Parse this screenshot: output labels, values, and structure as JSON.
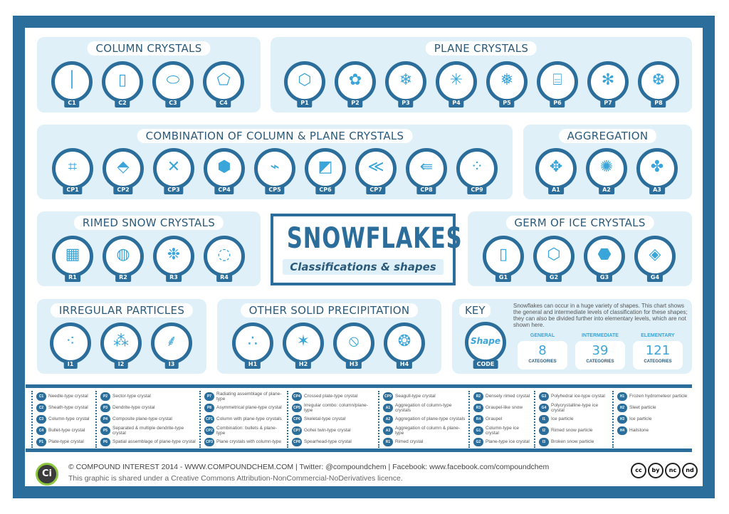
{
  "title": {
    "main": "SNOWFLAKES",
    "subtitle": "Classifications & shapes"
  },
  "colors": {
    "frame": "#2b6e9b",
    "panel": "#dff0f9",
    "icon": "#3aa5d8"
  },
  "groups": [
    {
      "id": "column",
      "title": "COLUMN CRYSTALS",
      "items": [
        {
          "code": "C1",
          "icon": "│"
        },
        {
          "code": "C2",
          "icon": "▯"
        },
        {
          "code": "C3",
          "icon": "⬭"
        },
        {
          "code": "C4",
          "icon": "⬠"
        }
      ]
    },
    {
      "id": "plane",
      "title": "PLANE CRYSTALS",
      "items": [
        {
          "code": "P1",
          "icon": "⬡"
        },
        {
          "code": "P2",
          "icon": "✿"
        },
        {
          "code": "P3",
          "icon": "❄"
        },
        {
          "code": "P4",
          "icon": "✳"
        },
        {
          "code": "P5",
          "icon": "❅"
        },
        {
          "code": "P6",
          "icon": "⌸"
        },
        {
          "code": "P7",
          "icon": "✻"
        },
        {
          "code": "P8",
          "icon": "❆"
        }
      ]
    },
    {
      "id": "combination",
      "title": "COMBINATION OF COLUMN & PLANE  CRYSTALS",
      "items": [
        {
          "code": "CP1",
          "icon": "⌗"
        },
        {
          "code": "CP2",
          "icon": "⬘"
        },
        {
          "code": "CP3",
          "icon": "✕"
        },
        {
          "code": "CP4",
          "icon": "⬢"
        },
        {
          "code": "CP5",
          "icon": "⌁"
        },
        {
          "code": "CP6",
          "icon": "◩"
        },
        {
          "code": "CP7",
          "icon": "≪"
        },
        {
          "code": "CP8",
          "icon": "⇚"
        },
        {
          "code": "CP9",
          "icon": "⁘"
        }
      ]
    },
    {
      "id": "aggregation",
      "title": "AGGREGATION",
      "items": [
        {
          "code": "A1",
          "icon": "✥"
        },
        {
          "code": "A2",
          "icon": "✺"
        },
        {
          "code": "A3",
          "icon": "✤"
        }
      ]
    },
    {
      "id": "rimed",
      "title": "RIMED SNOW CRYSTALS",
      "items": [
        {
          "code": "R1",
          "icon": "▦"
        },
        {
          "code": "R2",
          "icon": "◍"
        },
        {
          "code": "R3",
          "icon": "❉"
        },
        {
          "code": "R4",
          "icon": "◌"
        }
      ]
    },
    {
      "id": "germ",
      "title": "GERM OF ICE CRYSTALS",
      "items": [
        {
          "code": "G1",
          "icon": "▯"
        },
        {
          "code": "G2",
          "icon": "⬡"
        },
        {
          "code": "G3",
          "icon": "⬣"
        },
        {
          "code": "G4",
          "icon": "◈"
        }
      ]
    },
    {
      "id": "irregular",
      "title": "IRREGULAR PARTICLES",
      "items": [
        {
          "code": "I1",
          "icon": "⁖"
        },
        {
          "code": "I2",
          "icon": "⁂"
        },
        {
          "code": "I3",
          "icon": "⸙"
        }
      ]
    },
    {
      "id": "other",
      "title": "OTHER SOLID PRECIPITATION",
      "items": [
        {
          "code": "H1",
          "icon": "∴"
        },
        {
          "code": "H2",
          "icon": "✶"
        },
        {
          "code": "H3",
          "icon": "⦸"
        },
        {
          "code": "H4",
          "icon": "❂"
        }
      ]
    }
  ],
  "key": {
    "title": "KEY",
    "shape": "Shape",
    "code": "CODE",
    "text": "Snowflakes can occur in a huge variety of shapes. This chart shows the general and intermediate levels of classification for these shapes; they can also be divided further into elementary levels, which are not shown here.",
    "stats": [
      {
        "label": "GENERAL",
        "value": "8",
        "unit": "CATEGORIES"
      },
      {
        "label": "INTERMEDIATE",
        "value": "39",
        "unit": "CATEGORIES"
      },
      {
        "label": "ELEMENTARY",
        "value": "121",
        "unit": "CATEGORIES"
      }
    ]
  },
  "legend": [
    [
      [
        "C1",
        "Needle-type crystal"
      ],
      [
        "C2",
        "Sheath-type crystal"
      ],
      [
        "C3",
        "Column-type crystal"
      ],
      [
        "C4",
        "Bullet-type crystal"
      ],
      [
        "P1",
        "Plate-type crystal"
      ]
    ],
    [
      [
        "P2",
        "Sector-type crystal"
      ],
      [
        "P3",
        "Dendrite-type crystal"
      ],
      [
        "P4",
        "Composite plane-type crystal"
      ],
      [
        "P5",
        "Separated & multiple dendrite-type crystal"
      ],
      [
        "P6",
        "Spatial assemblage of plane-type crystal"
      ]
    ],
    [
      [
        "P7",
        "Radiating assemblage of plane-type"
      ],
      [
        "P8",
        "Asymmetrical plane-type crystal"
      ],
      [
        "CP1",
        "Column with plane-type crystals"
      ],
      [
        "CP2",
        "Combination: bullets & plane-type"
      ],
      [
        "CP3",
        "Plane crystals with column-type"
      ]
    ],
    [
      [
        "CP4",
        "Crossed plate-type crystal"
      ],
      [
        "CP5",
        "Irregular combo: column/plane-type"
      ],
      [
        "CP6",
        "Skeletal-type crystal"
      ],
      [
        "CP7",
        "Gohei twin-type crystal"
      ],
      [
        "CP8",
        "Spearhead-type crystal"
      ]
    ],
    [
      [
        "CP9",
        "Seagull-type crystal"
      ],
      [
        "A1",
        "Aggregation of column-type crystals"
      ],
      [
        "A2",
        "Aggregation of plane-type crystals"
      ],
      [
        "A3",
        "Aggregation of column & plane-type"
      ],
      [
        "R1",
        "Rimed crystal"
      ]
    ],
    [
      [
        "R2",
        "Densely rimed crystal"
      ],
      [
        "R3",
        "Graupel-like snow"
      ],
      [
        "R4",
        "Graupel"
      ],
      [
        "G1",
        "Column-type ice crystal"
      ],
      [
        "G2",
        "Plane-type ice crystal"
      ]
    ],
    [
      [
        "G3",
        "Polyhedral ice-type crystal"
      ],
      [
        "G4",
        "Polycrystalline-type ice crystal"
      ],
      [
        "I1",
        "Ice particle"
      ],
      [
        "I2",
        "Rimed snow particle"
      ],
      [
        "I3",
        "Broken snow particle"
      ]
    ],
    [
      [
        "H1",
        "Frozen hydrometeor particle"
      ],
      [
        "H2",
        "Sleet particle"
      ],
      [
        "H3",
        "Ice particle"
      ],
      [
        "H4",
        "Hailstone"
      ]
    ]
  ],
  "footer": {
    "logo": "Ci",
    "line1": "© COMPOUND INTEREST 2014 - WWW.COMPOUNDCHEM.COM | Twitter: @compoundchem | Facebook: www.facebook.com/compoundchem",
    "line2": "This graphic is shared under a Creative Commons Attribution-NonCommercial-NoDerivatives licence.",
    "license_icons": [
      "cc",
      "by",
      "nc",
      "nd"
    ]
  }
}
